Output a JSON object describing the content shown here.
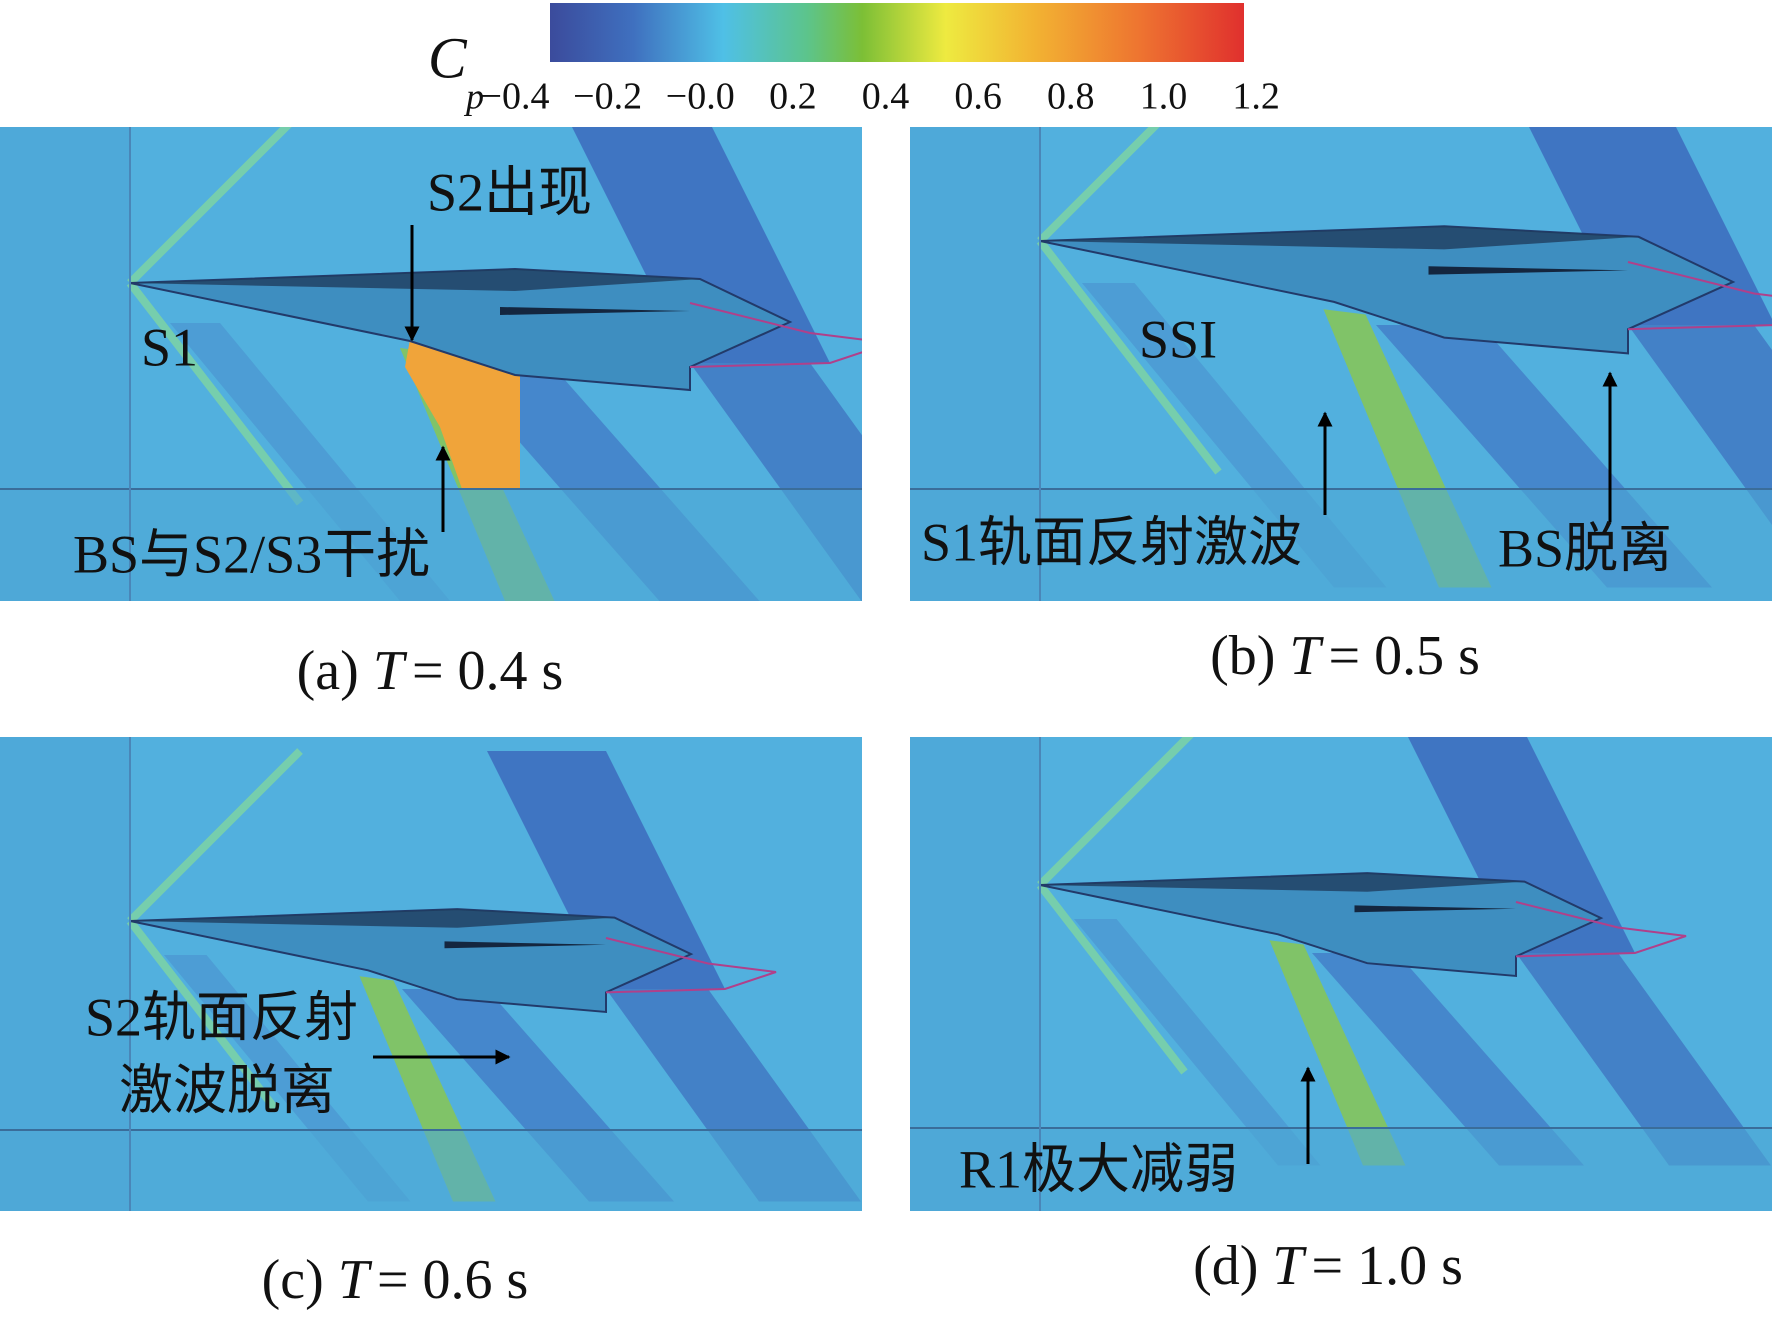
{
  "colorbar": {
    "symbol": "C",
    "subscript": "p",
    "ticks": [
      "−0.4",
      "−0.2",
      "−0.0",
      "0.2",
      "0.4",
      "0.6",
      "0.8",
      "1.0",
      "1.2"
    ]
  },
  "panels": [
    {
      "caption": {
        "label": "(a)",
        "variable": "T",
        "value": "= 0.4 s"
      },
      "annotations": [
        "S2出现",
        "S1",
        "BS与S2/S3干扰"
      ]
    },
    {
      "caption": {
        "label": "(b)",
        "variable": "T",
        "value": "= 0.5 s"
      },
      "annotations": [
        "SSI",
        "S1轨面反射激波",
        "BS脱离"
      ]
    },
    {
      "caption": {
        "label": "(c)",
        "variable": "T",
        "value": "= 0.6 s"
      },
      "annotations": [
        "S2轨面反射",
        "激波脱离"
      ]
    },
    {
      "caption": {
        "label": "(d)",
        "variable": "T",
        "value": "= 1.0 s"
      },
      "annotations": [
        "R1极大减弱"
      ]
    }
  ]
}
